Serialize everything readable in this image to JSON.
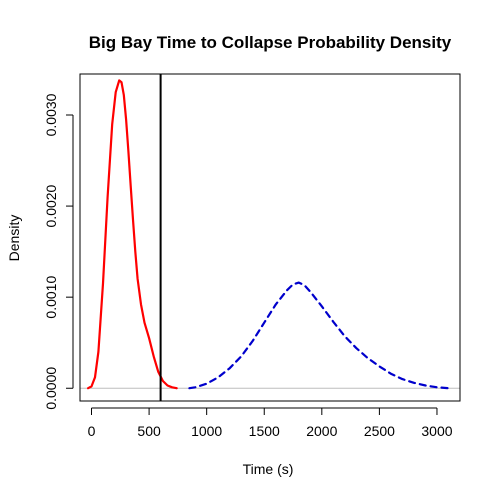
{
  "chart_data": {
    "type": "line",
    "title": "Big Bay Time to Collapse Probability Density",
    "xlabel": "Time (s)",
    "ylabel": "Density",
    "xlim": [
      -100,
      3200
    ],
    "ylim": [
      -0.00014,
      0.00345
    ],
    "xticks": [
      0,
      500,
      1000,
      1500,
      2000,
      2500,
      3000
    ],
    "xtick_labels": [
      "0",
      "500",
      "1000",
      "1500",
      "2000",
      "2500",
      "3000"
    ],
    "yticks": [
      0.0,
      0.001,
      0.002,
      0.003
    ],
    "ytick_labels": [
      "0.0000",
      "0.0010",
      "0.0020",
      "0.0030"
    ],
    "grid": false,
    "reference_hline": {
      "y": 0,
      "color": "#bebebe"
    },
    "reference_vline": {
      "x": 600,
      "color": "#000000"
    },
    "series": [
      {
        "color": "#ff0000",
        "style": "solid",
        "x": [
          -30,
          0,
          30,
          60,
          100,
          140,
          180,
          210,
          240,
          260,
          280,
          300,
          320,
          340,
          360,
          380,
          400,
          430,
          460,
          500,
          540,
          580,
          620,
          660,
          700,
          740
        ],
        "y": [
          0.0,
          2e-05,
          0.00012,
          0.0004,
          0.00115,
          0.0021,
          0.0029,
          0.00325,
          0.00338,
          0.00336,
          0.00322,
          0.00295,
          0.0026,
          0.00222,
          0.00185,
          0.0015,
          0.0012,
          0.00092,
          0.00072,
          0.00055,
          0.00035,
          0.00018,
          8e-05,
          3e-05,
          1e-05,
          0.0
        ]
      },
      {
        "color": "#0000cc",
        "style": "dashed",
        "x": [
          850,
          900,
          1000,
          1100,
          1200,
          1300,
          1400,
          1500,
          1600,
          1700,
          1750,
          1800,
          1850,
          1900,
          2000,
          2100,
          2200,
          2300,
          2400,
          2500,
          2600,
          2700,
          2800,
          2900,
          3000,
          3100
        ],
        "y": [
          0.0,
          1e-05,
          5e-05,
          0.00012,
          0.00022,
          0.00035,
          0.00052,
          0.00072,
          0.00092,
          0.00108,
          0.00114,
          0.00116,
          0.00113,
          0.00106,
          0.0009,
          0.00073,
          0.00057,
          0.00044,
          0.00033,
          0.00024,
          0.00016,
          0.0001,
          6e-05,
          3e-05,
          1e-05,
          0.0
        ]
      }
    ]
  }
}
